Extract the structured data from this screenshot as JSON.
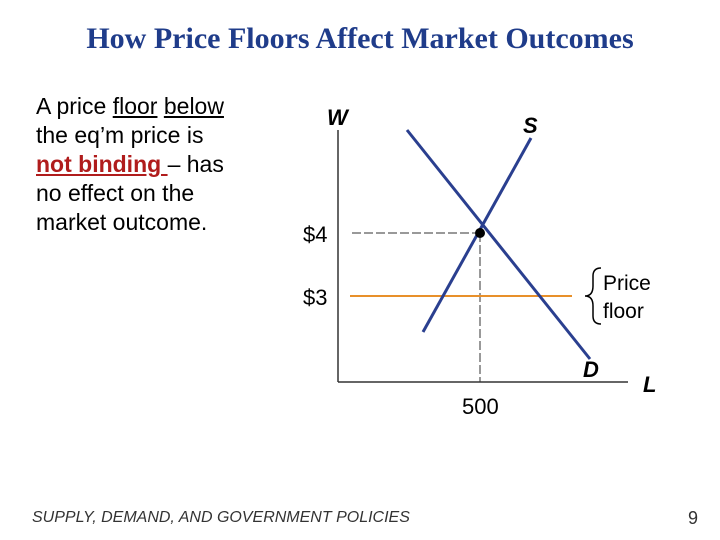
{
  "title": "How Price Floors Affect Market Outcomes",
  "body": {
    "part1": "A price ",
    "floor_word": "floor",
    "below_word": "below",
    "part2": " the eq’m price is ",
    "not_binding": "not binding ",
    "part3": "– has no effect on the market outcome."
  },
  "graph": {
    "y_axis_label": "W",
    "x_axis_label": "L",
    "supply_label": "S",
    "demand_label": "D",
    "eq_price_label": "$4",
    "floor_price_label": "$3",
    "eq_quantity_label": "500",
    "floor_annotation_line1": "Price",
    "floor_annotation_line2": "floor"
  },
  "colors": {
    "title": "#1f3c8a",
    "curves": "#2a3f8f",
    "floor_line": "#e8902a",
    "highlight_text": "#b01c1c"
  },
  "footer": "SUPPLY, DEMAND, AND GOVERNMENT POLICIES",
  "page_number": "9"
}
